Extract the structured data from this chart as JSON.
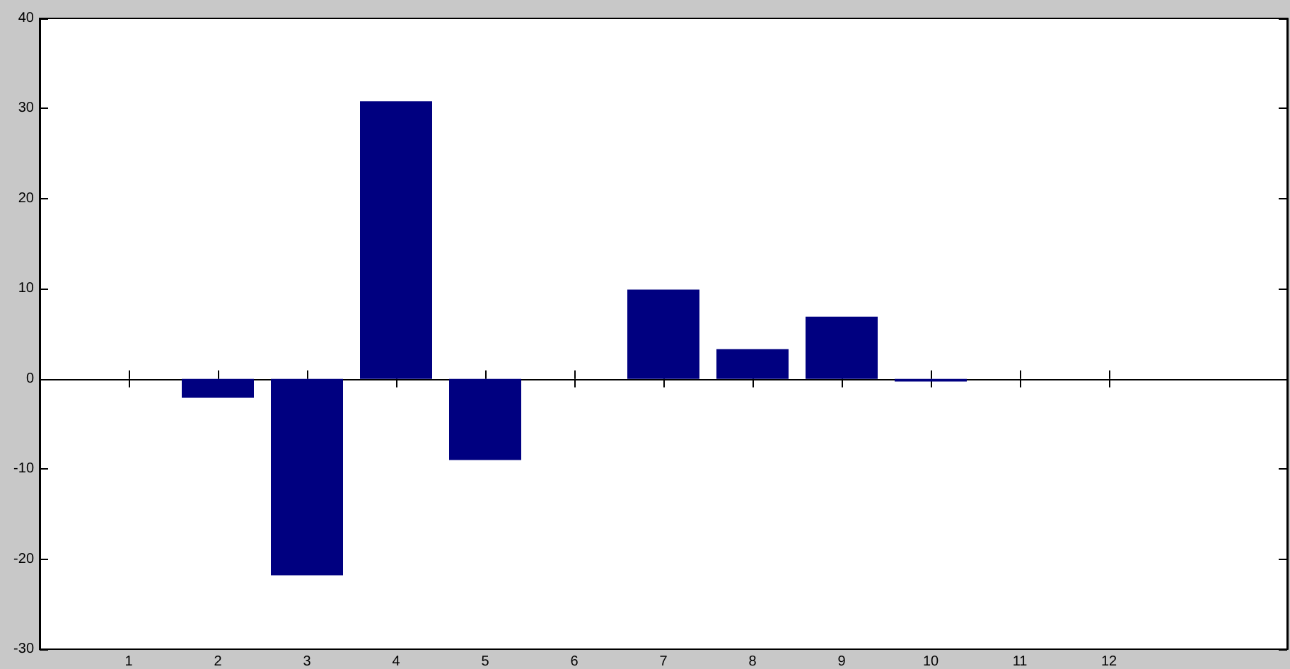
{
  "chart_data": {
    "type": "bar",
    "x": [
      1,
      2,
      3,
      4,
      5,
      6,
      7,
      8,
      9,
      10,
      11,
      12
    ],
    "values": [
      0,
      -2.1,
      -21.8,
      30.8,
      -9,
      0,
      9.9,
      3.3,
      6.9,
      -0.3,
      0,
      0
    ],
    "color": "#000080",
    "xlim": [
      0,
      14
    ],
    "xticks": [
      1,
      2,
      3,
      4,
      5,
      6,
      7,
      8,
      9,
      10,
      11,
      12
    ],
    "ylim": [
      -30,
      40
    ],
    "yticks": [
      -30,
      -20,
      -10,
      0,
      10,
      20,
      30,
      40
    ]
  }
}
